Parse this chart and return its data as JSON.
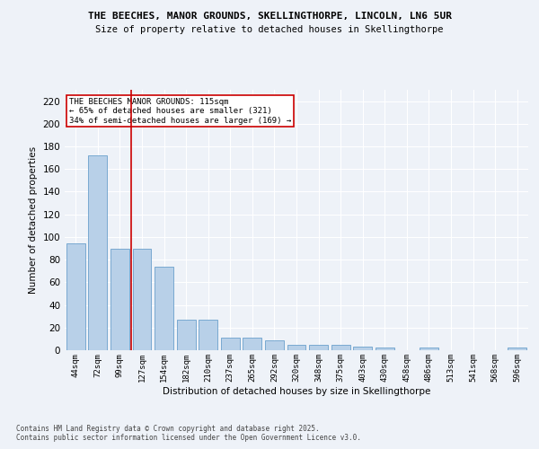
{
  "title_line1": "THE BEECHES, MANOR GROUNDS, SKELLINGTHORPE, LINCOLN, LN6 5UR",
  "title_line2": "Size of property relative to detached houses in Skellingthorpe",
  "xlabel": "Distribution of detached houses by size in Skellingthorpe",
  "ylabel": "Number of detached properties",
  "categories": [
    "44sqm",
    "72sqm",
    "99sqm",
    "127sqm",
    "154sqm",
    "182sqm",
    "210sqm",
    "237sqm",
    "265sqm",
    "292sqm",
    "320sqm",
    "348sqm",
    "375sqm",
    "403sqm",
    "430sqm",
    "458sqm",
    "486sqm",
    "513sqm",
    "541sqm",
    "568sqm",
    "596sqm"
  ],
  "values": [
    94,
    172,
    90,
    90,
    74,
    27,
    27,
    11,
    11,
    9,
    5,
    5,
    5,
    3,
    2,
    0,
    2,
    0,
    0,
    0,
    2
  ],
  "bar_color": "#b8d0e8",
  "bar_edge_color": "#6aa0cc",
  "vline_x": 2.5,
  "vline_color": "#cc0000",
  "annotation_text": "THE BEECHES MANOR GROUNDS: 115sqm\n← 65% of detached houses are smaller (321)\n34% of semi-detached houses are larger (169) →",
  "annotation_box_color": "#ffffff",
  "annotation_box_edge": "#cc0000",
  "ylim": [
    0,
    230
  ],
  "yticks": [
    0,
    20,
    40,
    60,
    80,
    100,
    120,
    140,
    160,
    180,
    200,
    220
  ],
  "footer_line1": "Contains HM Land Registry data © Crown copyright and database right 2025.",
  "footer_line2": "Contains public sector information licensed under the Open Government Licence v3.0.",
  "background_color": "#eef2f8",
  "grid_color": "#ffffff"
}
